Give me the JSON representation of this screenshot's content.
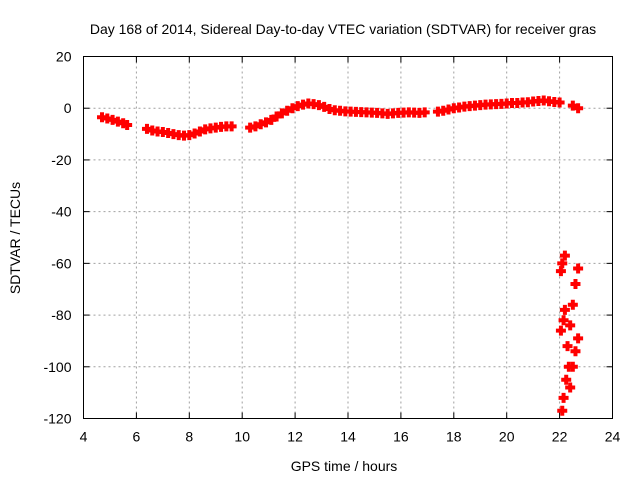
{
  "chart_data": {
    "type": "scatter",
    "title": "Day 168 of 2014, Sidereal Day-to-day VTEC variation (SDTVAR) for receiver gras",
    "xlabel": "GPS time / hours",
    "ylabel": "SDTVAR / TECUs",
    "xlim": [
      4,
      24
    ],
    "ylim": [
      -120,
      20
    ],
    "xticks": [
      4,
      6,
      8,
      10,
      12,
      14,
      16,
      18,
      20,
      22,
      24
    ],
    "yticks": [
      20,
      0,
      -20,
      -40,
      -60,
      -80,
      -100,
      -120
    ],
    "grid": true,
    "marker": "plus",
    "colors": {
      "series": "#ff0000",
      "frame": "#000000",
      "grid": "#a0a0a0"
    },
    "series": [
      {
        "name": "SDTVAR",
        "points": [
          [
            4.7,
            -3.5
          ],
          [
            4.9,
            -4.0
          ],
          [
            5.1,
            -4.5
          ],
          [
            5.3,
            -5.2
          ],
          [
            5.5,
            -5.8
          ],
          [
            5.65,
            -6.5
          ],
          [
            6.4,
            -8.0
          ],
          [
            6.6,
            -8.6
          ],
          [
            6.8,
            -9.0
          ],
          [
            7.0,
            -9.2
          ],
          [
            7.2,
            -9.6
          ],
          [
            7.4,
            -10.0
          ],
          [
            7.6,
            -10.4
          ],
          [
            7.8,
            -10.6
          ],
          [
            8.0,
            -10.4
          ],
          [
            8.2,
            -9.8
          ],
          [
            8.4,
            -9.0
          ],
          [
            8.6,
            -8.2
          ],
          [
            8.8,
            -7.8
          ],
          [
            9.0,
            -7.5
          ],
          [
            9.2,
            -7.2
          ],
          [
            9.4,
            -7.0
          ],
          [
            9.6,
            -7.0
          ],
          [
            10.3,
            -7.5
          ],
          [
            10.5,
            -7.0
          ],
          [
            10.7,
            -6.2
          ],
          [
            10.9,
            -5.5
          ],
          [
            11.1,
            -4.5
          ],
          [
            11.3,
            -3.2
          ],
          [
            11.5,
            -2.0
          ],
          [
            11.7,
            -1.0
          ],
          [
            11.9,
            0.0
          ],
          [
            12.1,
            0.8
          ],
          [
            12.3,
            1.4
          ],
          [
            12.5,
            1.8
          ],
          [
            12.7,
            1.6
          ],
          [
            12.9,
            1.2
          ],
          [
            13.1,
            0.5
          ],
          [
            13.3,
            -0.3
          ],
          [
            13.5,
            -0.8
          ],
          [
            13.7,
            -1.0
          ],
          [
            13.9,
            -1.2
          ],
          [
            14.1,
            -1.3
          ],
          [
            14.3,
            -1.4
          ],
          [
            14.5,
            -1.5
          ],
          [
            14.7,
            -1.6
          ],
          [
            14.9,
            -1.7
          ],
          [
            15.1,
            -1.8
          ],
          [
            15.3,
            -2.0
          ],
          [
            15.5,
            -2.2
          ],
          [
            15.7,
            -2.0
          ],
          [
            15.9,
            -1.8
          ],
          [
            16.1,
            -1.7
          ],
          [
            16.3,
            -1.6
          ],
          [
            16.5,
            -1.7
          ],
          [
            16.7,
            -1.8
          ],
          [
            16.9,
            -1.6
          ],
          [
            17.4,
            -1.3
          ],
          [
            17.6,
            -1.0
          ],
          [
            17.8,
            -0.5
          ],
          [
            18.0,
            0.0
          ],
          [
            18.2,
            0.3
          ],
          [
            18.4,
            0.6
          ],
          [
            18.6,
            0.8
          ],
          [
            18.8,
            1.0
          ],
          [
            19.0,
            1.2
          ],
          [
            19.2,
            1.4
          ],
          [
            19.4,
            1.5
          ],
          [
            19.6,
            1.6
          ],
          [
            19.8,
            1.7
          ],
          [
            20.0,
            1.8
          ],
          [
            20.2,
            2.0
          ],
          [
            20.4,
            2.0
          ],
          [
            20.6,
            2.2
          ],
          [
            20.8,
            2.3
          ],
          [
            21.0,
            2.6
          ],
          [
            21.2,
            2.8
          ],
          [
            21.4,
            3.0
          ],
          [
            21.6,
            2.7
          ],
          [
            21.8,
            2.4
          ],
          [
            22.0,
            2.2
          ],
          [
            22.5,
            1.0
          ],
          [
            22.7,
            0.0
          ],
          [
            22.05,
            -63
          ],
          [
            22.1,
            -60
          ],
          [
            22.2,
            -57
          ],
          [
            22.05,
            -86
          ],
          [
            22.15,
            -82
          ],
          [
            22.2,
            -78
          ],
          [
            22.3,
            -92
          ],
          [
            22.4,
            -84
          ],
          [
            22.5,
            -76
          ],
          [
            22.6,
            -68
          ],
          [
            22.7,
            -62
          ],
          [
            22.1,
            -117
          ],
          [
            22.15,
            -112
          ],
          [
            22.25,
            -105
          ],
          [
            22.35,
            -100
          ],
          [
            22.4,
            -108
          ],
          [
            22.5,
            -100
          ],
          [
            22.6,
            -94
          ],
          [
            22.7,
            -89
          ]
        ]
      }
    ]
  }
}
